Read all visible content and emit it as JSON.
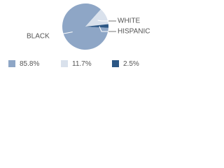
{
  "chart_data": {
    "type": "pie",
    "categories": [
      "BLACK",
      "WHITE",
      "HISPANIC"
    ],
    "values": [
      85.8,
      11.7,
      2.5
    ],
    "value_labels": [
      "85.8%",
      "11.7%",
      "2.5%"
    ],
    "colors": [
      "#8ea6c6",
      "#d9e1ec",
      "#2c5785"
    ]
  }
}
